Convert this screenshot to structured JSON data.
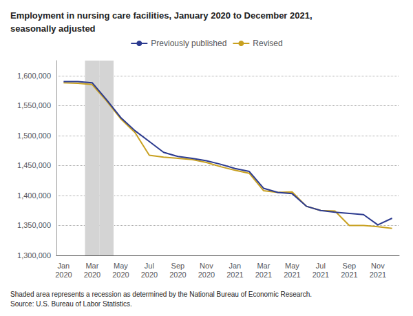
{
  "chart_data": {
    "type": "line",
    "title": "Employment in nursing care facilities, January 2020 to December 2021,\nseasonally adjusted",
    "footnote": "Shaded area represents a recession as determined by the National Bureau of Economic Research.\nSource: U.S. Bureau of Labor Statistics.",
    "categories": [
      "Jan\n2020",
      null,
      "Mar\n2020",
      null,
      "May\n2020",
      null,
      "Jul\n2020",
      null,
      "Sep\n2020",
      null,
      "Nov\n2020",
      null,
      "Jan\n2021",
      null,
      "Mar\n2021",
      null,
      "May\n2021",
      null,
      "Jul\n2021",
      null,
      "Sep\n2021",
      null,
      "Nov\n2021",
      null
    ],
    "series": [
      {
        "name": "Previously published",
        "color": "#2b3a8f",
        "values": [
          1590000,
          1590000,
          1588000,
          1560000,
          1530000,
          1508000,
          1490000,
          1472000,
          1465000,
          1462000,
          1458000,
          1452000,
          1445000,
          1440000,
          1412000,
          1405000,
          1403000,
          1382000,
          1375000,
          1372000,
          1370000,
          1368000,
          1351000,
          1362000
        ]
      },
      {
        "name": "Revised",
        "color": "#c8a020",
        "values": [
          1588000,
          1587000,
          1585000,
          1558000,
          1528000,
          1505000,
          1467000,
          1464000,
          1462000,
          1460000,
          1455000,
          1448000,
          1442000,
          1437000,
          1408000,
          1405000,
          1406000,
          1382000,
          1375000,
          1374000,
          1350000,
          1350000,
          1348000,
          1345000
        ]
      }
    ],
    "shaded": {
      "from": 1.5,
      "to": 3.5,
      "color": "#d4d4d4"
    },
    "ylim": [
      1300000,
      1625000
    ],
    "yticks": [
      {
        "value": 1300000,
        "label": "1,300,000"
      },
      {
        "value": 1350000,
        "label": "1,350,000"
      },
      {
        "value": 1400000,
        "label": "1,400,000"
      },
      {
        "value": 1450000,
        "label": "1,450,000"
      },
      {
        "value": 1500000,
        "label": "1,500,000"
      },
      {
        "value": 1550000,
        "label": "1,550,000"
      },
      {
        "value": 1600000,
        "label": "1,600,000"
      }
    ],
    "grid": true,
    "legend": "top"
  }
}
